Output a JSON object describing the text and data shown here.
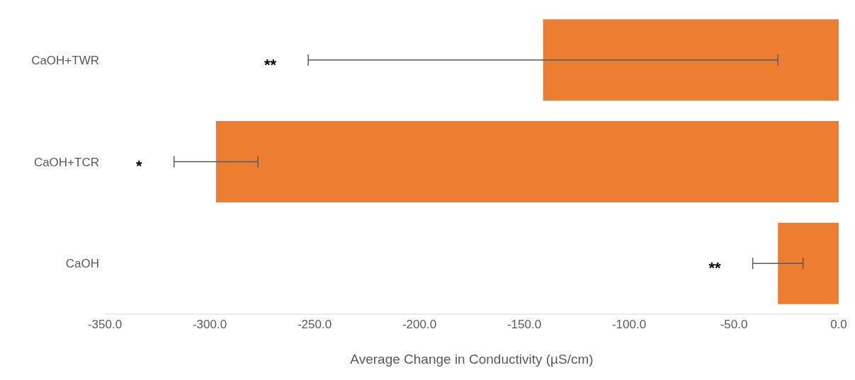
{
  "chart_data": {
    "type": "bar",
    "orientation": "horizontal",
    "xlabel": "Average Change in Conductivity (µS/cm)",
    "categories": [
      "CaOH+TWR",
      "CaOH+TCR",
      "CaOH"
    ],
    "values": [
      -141,
      -297,
      -29
    ],
    "errors": [
      112,
      20,
      12
    ],
    "color": "#ed7d31",
    "xlim": [
      -350,
      0
    ],
    "xticks": [
      {
        "value": -350,
        "label": "-350.0"
      },
      {
        "value": -300,
        "label": "-300.0"
      },
      {
        "value": -250,
        "label": "-250.0"
      },
      {
        "value": -200,
        "label": "-200.0"
      },
      {
        "value": -150,
        "label": "-150.0"
      },
      {
        "value": -100,
        "label": "-100.0"
      },
      {
        "value": -50,
        "label": "-50.0"
      },
      {
        "value": 0,
        "label": "0.0"
      }
    ],
    "grid": false,
    "annotations": [
      "**",
      "*",
      "**"
    ]
  }
}
